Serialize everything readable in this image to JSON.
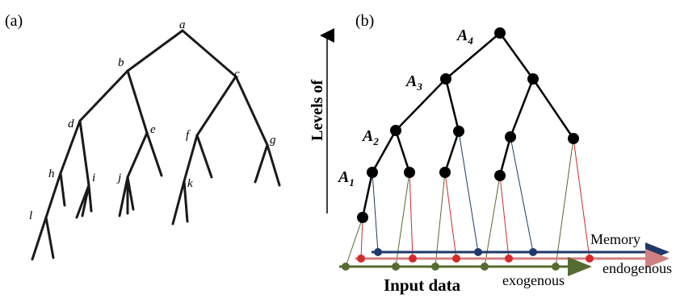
{
  "panels": {
    "a": {
      "label": "(a)"
    },
    "b": {
      "label": "(b)"
    }
  },
  "sketch_tree": {
    "node_labels": [
      "a",
      "b",
      "c",
      "d",
      "e",
      "f",
      "g",
      "h",
      "i",
      "j",
      "k",
      "l"
    ]
  },
  "hierarchy": {
    "levels": [
      {
        "letter": "A",
        "sub": "4"
      },
      {
        "letter": "A",
        "sub": "3"
      },
      {
        "letter": "A",
        "sub": "2"
      },
      {
        "letter": "A",
        "sub": "1"
      }
    ],
    "axis_label": "Levels of"
  },
  "streams": {
    "memory": "Memory",
    "endogenous": "endogenous",
    "exogenous": "exogenous",
    "input": "Input data"
  },
  "colors": {
    "tree": "#000000",
    "memory": "#1f3a68",
    "endogenous": "#d42a2a",
    "exogenous": "#556b2f",
    "memory_arrow": "#1f3a68",
    "endogenous_arrow": "#d08080",
    "exogenous_arrow": "#556b2f"
  }
}
